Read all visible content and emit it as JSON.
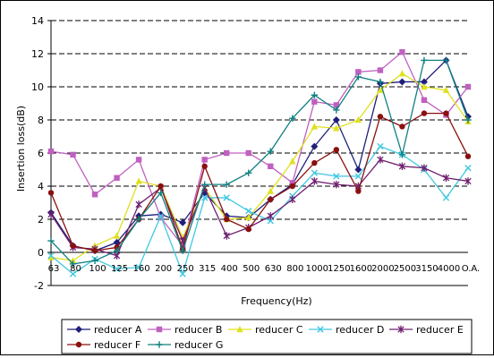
{
  "chart_data": {
    "type": "line",
    "xlabel": "Frequency(Hz)",
    "ylabel": "Insertion loss(dB)",
    "ylim": [
      -2,
      14
    ],
    "yticks": [
      -2,
      0,
      2,
      4,
      6,
      8,
      10,
      12,
      14
    ],
    "grid": "horizontal dashed",
    "legend_position": "bottom",
    "categories": [
      "63",
      "80",
      "100",
      "125",
      "160",
      "200",
      "250",
      "315",
      "400",
      "500",
      "630",
      "800",
      "1000",
      "1250",
      "1600",
      "2000",
      "2500",
      "3150",
      "4000",
      "O.A."
    ],
    "series": [
      {
        "name": "reducer A",
        "color": "#1f1f7a",
        "marker": "diamond",
        "values": [
          2.4,
          0.4,
          0.1,
          0.6,
          2.2,
          2.3,
          1.8,
          3.6,
          2.2,
          2.1,
          3.2,
          4.1,
          6.4,
          8.0,
          5.0,
          10.2,
          10.3,
          10.3,
          11.6,
          8.2
        ]
      },
      {
        "name": "reducer B",
        "color": "#c060c0",
        "marker": "square",
        "values": [
          6.1,
          5.9,
          3.5,
          4.5,
          5.6,
          2.1,
          0.4,
          5.6,
          6.0,
          6.0,
          5.2,
          4.2,
          9.1,
          8.9,
          10.9,
          11.0,
          12.1,
          9.2,
          8.3,
          10.0
        ]
      },
      {
        "name": "reducer C",
        "color": "#e0e020",
        "marker": "triangle",
        "values": [
          -0.3,
          -0.5,
          0.4,
          1.0,
          4.3,
          4.0,
          0.9,
          3.9,
          2.0,
          2.1,
          3.7,
          5.5,
          7.6,
          7.5,
          8.0,
          9.8,
          10.8,
          10.0,
          9.8,
          7.9
        ]
      },
      {
        "name": "reducer D",
        "color": "#40c8e0",
        "marker": "x",
        "values": [
          -0.2,
          -1.3,
          -0.4,
          -1.0,
          -0.9,
          2.2,
          -1.3,
          3.3,
          3.3,
          2.5,
          1.9,
          3.4,
          4.8,
          4.6,
          4.6,
          6.4,
          5.9,
          5.0,
          3.3,
          5.1
        ]
      },
      {
        "name": "reducer E",
        "color": "#702070",
        "marker": "star",
        "values": [
          2.3,
          0.3,
          0.2,
          -0.2,
          2.9,
          3.9,
          0.7,
          3.9,
          1.0,
          1.5,
          2.2,
          3.2,
          4.3,
          4.1,
          4.0,
          5.6,
          5.2,
          5.1,
          4.5,
          4.3
        ]
      },
      {
        "name": "reducer F",
        "color": "#8a1010",
        "marker": "circle",
        "values": [
          3.6,
          0.4,
          0.1,
          0.3,
          2.0,
          4.0,
          0.2,
          5.2,
          2.0,
          1.4,
          3.2,
          4.0,
          5.4,
          6.2,
          3.7,
          8.2,
          7.6,
          8.4,
          8.4,
          5.8
        ]
      },
      {
        "name": "reducer G",
        "color": "#108080",
        "marker": "plus",
        "values": [
          0.7,
          -0.7,
          -0.5,
          0.1,
          2.0,
          3.6,
          0.1,
          4.1,
          4.1,
          4.8,
          6.1,
          8.1,
          9.5,
          8.6,
          10.6,
          10.3,
          5.9,
          11.6,
          11.6,
          8.0
        ]
      }
    ]
  }
}
